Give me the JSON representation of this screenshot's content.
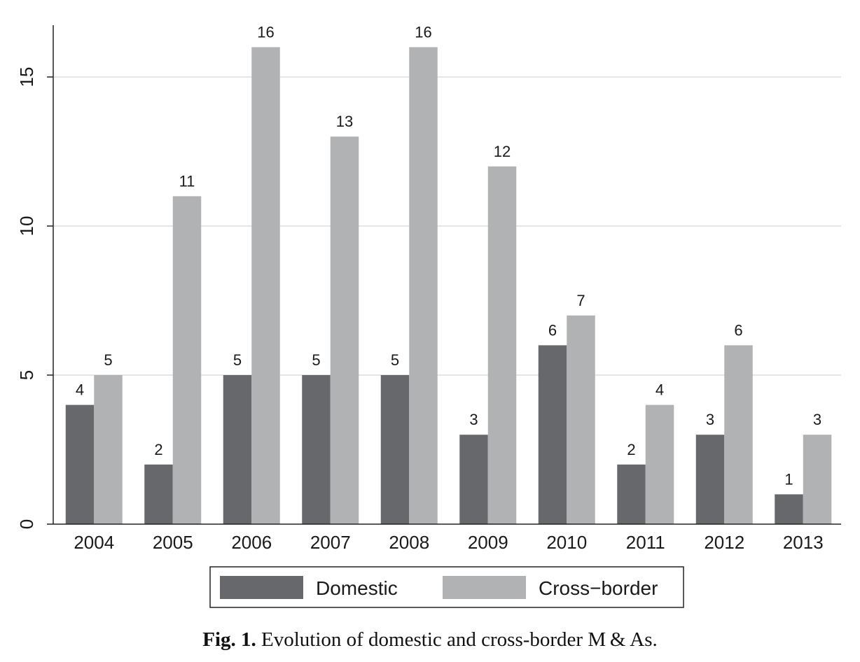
{
  "chart_data": {
    "type": "bar",
    "categories": [
      "2004",
      "2005",
      "2006",
      "2007",
      "2008",
      "2009",
      "2010",
      "2011",
      "2012",
      "2013"
    ],
    "series": [
      {
        "name": "Domestic",
        "values": [
          4,
          2,
          5,
          5,
          5,
          3,
          6,
          2,
          3,
          1
        ],
        "color": "#67686c"
      },
      {
        "name": "Cross−border",
        "values": [
          5,
          11,
          16,
          13,
          16,
          12,
          7,
          4,
          6,
          3
        ],
        "color": "#b1b2b4"
      }
    ],
    "ylim": [
      0,
      16.5
    ],
    "yticks": [
      "0",
      "5",
      "10",
      "15"
    ],
    "ytick_values": [
      0,
      5,
      10,
      15
    ],
    "grid": true,
    "legend_position": "bottom",
    "title": "",
    "xlabel": "",
    "ylabel": ""
  },
  "caption": {
    "label": "Fig. 1.",
    "text": " Evolution of domestic and cross-border M & As."
  }
}
